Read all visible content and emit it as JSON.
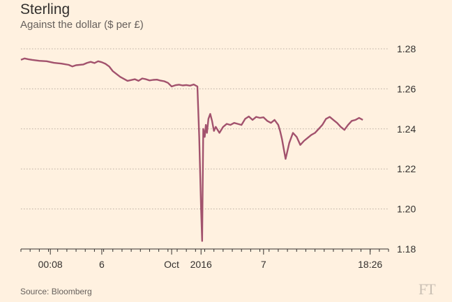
{
  "header": {
    "title": "Sterling",
    "subtitle": "Against the dollar ($ per £)"
  },
  "footer": {
    "source": "Source: Bloomberg",
    "logo": "FT"
  },
  "colors": {
    "background": "#fff1e0",
    "line": "#a2526d",
    "grid": "#b8ab9f",
    "text": "#33302e"
  },
  "chart_data": {
    "type": "line",
    "title": "Sterling",
    "subtitle": "Against the dollar ($ per £)",
    "xlabel": "",
    "ylabel": "",
    "ylim": [
      1.18,
      1.28
    ],
    "y_ticks": [
      1.18,
      1.2,
      1.22,
      1.24,
      1.26,
      1.28
    ],
    "y_tick_labels": [
      "1.18",
      "1.20",
      "1.22",
      "1.24",
      "1.26",
      "1.28"
    ],
    "x_range": [
      0,
      100
    ],
    "x_ticks": [
      {
        "x": 8,
        "label": "00:08"
      },
      {
        "x": 22,
        "label": "6"
      },
      {
        "x": 41,
        "label": "Oct"
      },
      {
        "x": 49,
        "label": "2016"
      },
      {
        "x": 66,
        "label": "7"
      },
      {
        "x": 95,
        "label": "18:26"
      }
    ],
    "grid": true,
    "legend": "none",
    "series": [
      {
        "x": [
          0,
          1,
          2,
          3,
          5,
          7,
          9,
          11,
          13,
          14,
          15,
          17,
          18,
          19,
          20,
          21,
          22,
          23,
          24,
          25,
          27,
          29,
          31,
          32,
          33,
          34,
          35,
          36,
          37,
          38,
          39,
          40,
          41,
          42,
          43,
          44,
          45,
          46,
          47,
          48,
          48.5,
          49,
          49.3,
          49.6,
          50,
          50.3,
          50.6,
          51,
          51.5,
          52,
          52.5,
          53,
          54,
          55,
          56,
          57,
          58,
          59,
          60,
          61,
          62,
          63,
          64,
          65,
          66,
          67,
          68,
          69,
          70,
          70.5,
          71,
          71.5,
          72,
          72.5,
          73,
          74,
          75,
          76,
          77,
          78,
          79,
          80,
          81,
          82,
          83,
          84,
          85,
          86,
          87,
          88,
          89,
          90,
          91,
          92,
          93
        ],
        "y": [
          1.2745,
          1.2752,
          1.2748,
          1.2745,
          1.274,
          1.2738,
          1.273,
          1.2726,
          1.272,
          1.2712,
          1.2718,
          1.2722,
          1.273,
          1.2735,
          1.2729,
          1.2738,
          1.2733,
          1.2725,
          1.2712,
          1.2688,
          1.266,
          1.264,
          1.2648,
          1.264,
          1.2652,
          1.2648,
          1.2642,
          1.2645,
          1.2646,
          1.2641,
          1.2638,
          1.263,
          1.2612,
          1.2618,
          1.2621,
          1.2617,
          1.2619,
          1.2616,
          1.2622,
          1.2612,
          1.236,
          1.201,
          1.184,
          1.24,
          1.236,
          1.242,
          1.238,
          1.245,
          1.2475,
          1.244,
          1.239,
          1.241,
          1.238,
          1.241,
          1.2425,
          1.242,
          1.243,
          1.2425,
          1.242,
          1.245,
          1.2462,
          1.2445,
          1.246,
          1.2455,
          1.2458,
          1.244,
          1.243,
          1.2445,
          1.242,
          1.239,
          1.235,
          1.23,
          1.225,
          1.229,
          1.233,
          1.238,
          1.236,
          1.232,
          1.234,
          1.2355,
          1.237,
          1.238,
          1.24,
          1.242,
          1.245,
          1.246,
          1.2445,
          1.243,
          1.241,
          1.2395,
          1.242,
          1.244,
          1.2445,
          1.2455,
          1.2445
        ]
      }
    ]
  }
}
